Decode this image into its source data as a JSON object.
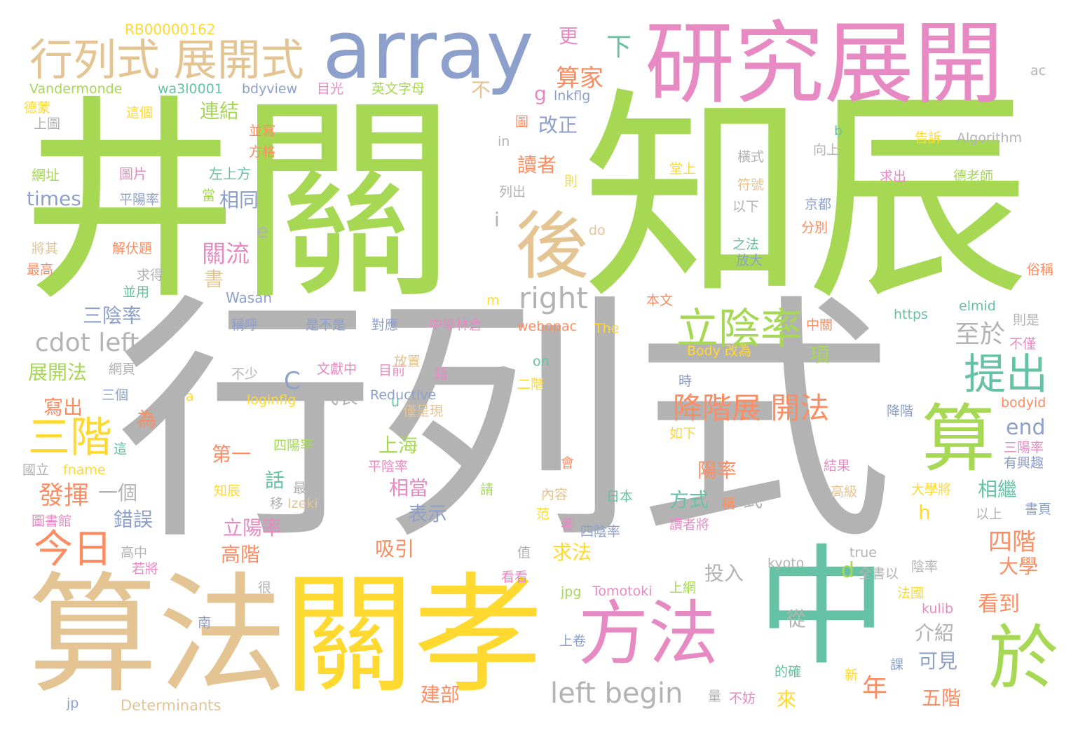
{
  "palette": {
    "green": "#a6d854",
    "gray": "#b3b3b3",
    "tan": "#e5c494",
    "yellow": "#ffd92f",
    "pink": "#e78ac3",
    "blue": "#8da0cb",
    "teal": "#66c2a5",
    "orange": "#fc8d62"
  },
  "words": [
    {
      "text": "行列式",
      "color": "gray",
      "vertical": false
    },
    {
      "text": "井關",
      "color": "green",
      "vertical": false
    },
    {
      "text": "知辰",
      "color": "green",
      "vertical": false
    },
    {
      "text": "算法",
      "color": "tan",
      "vertical": false
    },
    {
      "text": "關孝",
      "color": "yellow",
      "vertical": false
    },
    {
      "text": "研究展開",
      "color": "pink",
      "vertical": false
    },
    {
      "text": "中",
      "color": "teal",
      "vertical": false
    },
    {
      "text": "array",
      "color": "blue",
      "vertical": false
    },
    {
      "text": "後",
      "color": "tan",
      "vertical": false
    },
    {
      "text": "方法",
      "color": "pink",
      "vertical": false
    },
    {
      "text": "算",
      "color": "green",
      "vertical": false
    },
    {
      "text": "於",
      "color": "green",
      "vertical": false
    },
    {
      "text": "行列式 展開式",
      "color": "tan",
      "vertical": false
    },
    {
      "text": "立陰率",
      "color": "green",
      "vertical": false
    },
    {
      "text": "三階",
      "color": "yellow",
      "vertical": false
    },
    {
      "text": "提出",
      "color": "teal",
      "vertical": false
    },
    {
      "text": "今日",
      "color": "orange",
      "vertical": false
    },
    {
      "text": "left begin",
      "color": "gray",
      "vertical": false
    },
    {
      "text": "cdot left",
      "color": "gray",
      "vertical": false
    },
    {
      "text": "降階展 開法",
      "color": "orange",
      "vertical": false
    },
    {
      "text": "right",
      "color": "gray",
      "vertical": false
    },
    {
      "text": "RB00000162",
      "color": "yellow",
      "vertical": false
    },
    {
      "text": "Vandermonde",
      "color": "green",
      "vertical": false
    },
    {
      "text": "wa3l0001",
      "color": "teal",
      "vertical": false
    },
    {
      "text": "bdyview",
      "color": "blue",
      "vertical": false
    },
    {
      "text": "目光",
      "color": "pink",
      "vertical": false
    },
    {
      "text": "英文字母",
      "color": "green",
      "vertical": false
    },
    {
      "text": "德蒙",
      "color": "yellow",
      "vertical": false
    },
    {
      "text": "這個",
      "color": "yellow",
      "vertical": false
    },
    {
      "text": "上圖",
      "color": "gray",
      "vertical": false
    },
    {
      "text": "網址",
      "color": "green",
      "vertical": false
    },
    {
      "text": "圖片",
      "color": "pink",
      "vertical": false
    },
    {
      "text": "左上方",
      "color": "teal",
      "vertical": false
    },
    {
      "text": "times",
      "color": "blue",
      "vertical": false
    },
    {
      "text": "平陽率",
      "color": "blue",
      "vertical": false
    },
    {
      "text": "當",
      "color": "green",
      "vertical": false
    },
    {
      "text": "將其",
      "color": "tan",
      "vertical": false
    },
    {
      "text": "解伏題",
      "color": "orange",
      "vertical": false
    },
    {
      "text": "最高",
      "color": "orange",
      "vertical": false
    },
    {
      "text": "求得",
      "color": "gray",
      "vertical": false
    },
    {
      "text": "並用",
      "color": "teal",
      "vertical": false
    },
    {
      "text": "Wasan",
      "color": "blue",
      "vertical": false
    },
    {
      "text": "三陰率",
      "color": "blue",
      "vertical": false
    },
    {
      "text": "稱呼",
      "color": "blue",
      "vertical": false
    },
    {
      "text": "是不是",
      "color": "blue",
      "vertical": false
    },
    {
      "text": "對應",
      "color": "blue",
      "vertical": false
    },
    {
      "text": "中學林倉",
      "color": "pink",
      "vertical": false
    },
    {
      "text": "webopac",
      "color": "orange",
      "vertical": false
    },
    {
      "text": "The",
      "color": "yellow",
      "vertical": false
    },
    {
      "text": "中關",
      "color": "orange",
      "vertical": false
    },
    {
      "text": "https",
      "color": "teal",
      "vertical": false
    },
    {
      "text": "elmid",
      "color": "teal",
      "vertical": false
    },
    {
      "text": "則是",
      "color": "gray",
      "vertical": false
    },
    {
      "text": "不僅",
      "color": "pink",
      "vertical": false
    },
    {
      "text": "Body 改為",
      "color": "yellow",
      "vertical": false
    },
    {
      "text": "展開法",
      "color": "green",
      "vertical": false
    },
    {
      "text": "網頁",
      "color": "gray",
      "vertical": false
    },
    {
      "text": "不少",
      "color": "gray",
      "vertical": false
    },
    {
      "text": "文獻中",
      "color": "pink",
      "vertical": false
    },
    {
      "text": "目前",
      "color": "pink",
      "vertical": false
    },
    {
      "text": "錯",
      "color": "pink",
      "vertical": false
    },
    {
      "text": "二階",
      "color": "yellow",
      "vertical": false
    },
    {
      "text": "時",
      "color": "blue",
      "vertical": false
    },
    {
      "text": "寫出",
      "color": "orange",
      "vertical": false
    },
    {
      "text": "三個",
      "color": "blue",
      "vertical": false
    },
    {
      "text": "代表",
      "color": "gray",
      "vertical": false
    },
    {
      "text": "Reductive",
      "color": "blue",
      "vertical": false
    },
    {
      "text": "loginflg",
      "color": "yellow",
      "vertical": false
    },
    {
      "text": "僅呈現",
      "color": "tan",
      "vertical": false
    },
    {
      "text": "bodyid",
      "color": "orange",
      "vertical": false
    },
    {
      "text": "為",
      "color": "orange",
      "vertical": false
    },
    {
      "text": "上海",
      "color": "green",
      "vertical": false
    },
    {
      "text": "end",
      "color": "blue",
      "vertical": false
    },
    {
      "text": "第一",
      "color": "orange",
      "vertical": false
    },
    {
      "text": "四陽率",
      "color": "green",
      "vertical": false
    },
    {
      "text": "平陰率",
      "color": "pink",
      "vertical": false
    },
    {
      "text": "如下",
      "color": "yellow",
      "vertical": false
    },
    {
      "text": "降階",
      "color": "blue",
      "vertical": false
    },
    {
      "text": "三陽率",
      "color": "pink",
      "vertical": false
    },
    {
      "text": "有興趣",
      "color": "blue",
      "vertical": false
    },
    {
      "text": "國立",
      "color": "gray",
      "vertical": false
    },
    {
      "text": "fname",
      "color": "yellow",
      "vertical": false
    },
    {
      "text": "陽率",
      "color": "orange",
      "vertical": false
    },
    {
      "text": "發揮",
      "color": "orange",
      "vertical": false
    },
    {
      "text": "一個",
      "color": "gray",
      "vertical": false
    },
    {
      "text": "相當",
      "color": "pink",
      "vertical": false
    },
    {
      "text": "話",
      "color": "teal",
      "vertical": false
    },
    {
      "text": "知辰",
      "color": "yellow",
      "vertical": false
    },
    {
      "text": "最早",
      "color": "gray",
      "vertical": false
    },
    {
      "text": "移",
      "color": "gray",
      "vertical": false
    },
    {
      "text": "Izeki",
      "color": "tan",
      "vertical": false
    },
    {
      "text": "方式",
      "color": "teal",
      "vertical": false
    },
    {
      "text": "式",
      "color": "gray",
      "vertical": false
    },
    {
      "text": "結果",
      "color": "pink",
      "vertical": false
    },
    {
      "text": "大學將",
      "color": "yellow",
      "vertical": false
    },
    {
      "text": "相繼",
      "color": "teal",
      "vertical": false
    },
    {
      "text": "錯誤",
      "color": "blue",
      "vertical": false
    },
    {
      "text": "表示",
      "color": "blue",
      "vertical": false
    },
    {
      "text": "內容",
      "color": "tan",
      "vertical": false
    },
    {
      "text": "日本",
      "color": "teal",
      "vertical": false
    },
    {
      "text": "稱",
      "color": "orange",
      "vertical": false
    },
    {
      "text": "高級",
      "color": "tan",
      "vertical": false
    },
    {
      "text": "圖書館",
      "color": "pink",
      "vertical": false
    },
    {
      "text": "立陽率",
      "color": "pink",
      "vertical": false
    },
    {
      "text": "四階",
      "color": "orange",
      "vertical": false
    },
    {
      "text": "以上",
      "color": "gray",
      "vertical": false
    },
    {
      "text": "書頁",
      "color": "blue",
      "vertical": false
    },
    {
      "text": "高中",
      "color": "gray",
      "vertical": false
    },
    {
      "text": "若將",
      "color": "pink",
      "vertical": false
    },
    {
      "text": "高階",
      "color": "orange",
      "vertical": false
    },
    {
      "text": "吸引",
      "color": "orange",
      "vertical": false
    },
    {
      "text": "值",
      "color": "gray",
      "vertical": false
    },
    {
      "text": "求法",
      "color": "yellow",
      "vertical": false
    },
    {
      "text": "四陰率",
      "color": "blue",
      "vertical": false
    },
    {
      "text": "讀者將",
      "color": "pink",
      "vertical": false
    },
    {
      "text": "大學",
      "color": "orange",
      "vertical": false
    },
    {
      "text": "很",
      "color": "gray",
      "vertical": false
    },
    {
      "text": "看看",
      "color": "pink",
      "vertical": false
    },
    {
      "text": "投入",
      "color": "gray",
      "vertical": false
    },
    {
      "text": "kyoto",
      "color": "gray",
      "vertical": false
    },
    {
      "text": "全書以",
      "color": "gray",
      "vertical": false
    },
    {
      "text": "陰率",
      "color": "gray",
      "vertical": false
    },
    {
      "text": "jpg",
      "color": "green",
      "vertical": false
    },
    {
      "text": "Tomotoki",
      "color": "pink",
      "vertical": false
    },
    {
      "text": "上網",
      "color": "green",
      "vertical": false
    },
    {
      "text": "法國",
      "color": "yellow",
      "vertical": false
    },
    {
      "text": "kulib",
      "color": "pink",
      "vertical": false
    },
    {
      "text": "看到",
      "color": "orange",
      "vertical": false
    },
    {
      "text": "南",
      "color": "blue",
      "vertical": false
    },
    {
      "text": "上卷",
      "color": "blue",
      "vertical": false
    },
    {
      "text": "從",
      "color": "gray",
      "vertical": false
    },
    {
      "text": "介紹",
      "color": "gray",
      "vertical": false
    },
    {
      "text": "可見",
      "color": "blue",
      "vertical": false
    },
    {
      "text": "課",
      "color": "blue",
      "vertical": false
    },
    {
      "text": "的確",
      "color": "teal",
      "vertical": false
    },
    {
      "text": "新",
      "color": "yellow",
      "vertical": false
    },
    {
      "text": "年",
      "color": "orange",
      "vertical": false
    },
    {
      "text": "建部",
      "color": "orange",
      "vertical": false
    },
    {
      "text": "來",
      "color": "yellow",
      "vertical": false
    },
    {
      "text": "五階",
      "color": "orange",
      "vertical": false
    },
    {
      "text": "jp",
      "color": "blue",
      "vertical": false
    },
    {
      "text": "Determinants",
      "color": "tan",
      "vertical": false
    },
    {
      "text": "量",
      "color": "gray",
      "vertical": false
    },
    {
      "text": "不妨",
      "color": "pink",
      "vertical": false
    },
    {
      "text": "更",
      "color": "pink",
      "vertical": false
    },
    {
      "text": "下",
      "color": "teal",
      "vertical": false
    },
    {
      "text": "算家",
      "color": "orange",
      "vertical": false
    },
    {
      "text": "不",
      "color": "tan",
      "vertical": false
    },
    {
      "text": "g",
      "color": "pink",
      "vertical": false
    },
    {
      "text": "lnkflg",
      "color": "blue",
      "vertical": false
    },
    {
      "text": "連結",
      "color": "green",
      "vertical": false
    },
    {
      "text": "改正",
      "color": "blue",
      "vertical": false
    },
    {
      "text": "圖",
      "color": "orange",
      "vertical": false
    },
    {
      "text": "ac",
      "color": "gray",
      "vertical": false
    },
    {
      "text": "並寫",
      "color": "orange",
      "vertical": false
    },
    {
      "text": "方格",
      "color": "orange",
      "vertical": false
    },
    {
      "text": "in",
      "color": "gray",
      "vertical": false
    },
    {
      "text": "讀者",
      "color": "orange",
      "vertical": false
    },
    {
      "text": "則",
      "color": "yellow",
      "vertical": false
    },
    {
      "text": "列出",
      "color": "gray",
      "vertical": false
    },
    {
      "text": "b",
      "color": "teal",
      "vertical": false
    },
    {
      "text": "向上",
      "color": "gray",
      "vertical": false
    },
    {
      "text": "告訴",
      "color": "yellow",
      "vertical": false
    },
    {
      "text": "Algorithm",
      "color": "gray",
      "vertical": false
    },
    {
      "text": "橫式",
      "color": "gray",
      "vertical": false
    },
    {
      "text": "堂上",
      "color": "yellow",
      "vertical": false
    },
    {
      "text": "求出",
      "color": "pink",
      "vertical": false
    },
    {
      "text": "德老師",
      "color": "green",
      "vertical": false
    },
    {
      "text": "符號",
      "color": "tan",
      "vertical": false
    },
    {
      "text": "以下",
      "color": "gray",
      "vertical": false
    },
    {
      "text": "京都",
      "color": "blue",
      "vertical": false
    },
    {
      "text": "相同",
      "color": "blue",
      "vertical": false
    },
    {
      "text": "i",
      "color": "gray",
      "vertical": false
    },
    {
      "text": "分別",
      "color": "orange",
      "vertical": false
    },
    {
      "text": "e",
      "color": "gray",
      "vertical": false
    },
    {
      "text": "do",
      "color": "tan",
      "vertical": false
    },
    {
      "text": "之法",
      "color": "teal",
      "vertical": false
    },
    {
      "text": "放大",
      "color": "blue",
      "vertical": false
    },
    {
      "text": "關流",
      "color": "pink",
      "vertical": false
    },
    {
      "text": "f",
      "color": "green",
      "vertical": false
    },
    {
      "text": "書",
      "color": "tan",
      "vertical": false
    },
    {
      "text": "俗稱",
      "color": "orange",
      "vertical": false
    },
    {
      "text": "m",
      "color": "yellow",
      "vertical": false
    },
    {
      "text": "本文",
      "color": "orange",
      "vertical": false
    },
    {
      "text": "至於",
      "color": "gray",
      "vertical": false
    },
    {
      "text": "項",
      "color": "green",
      "vertical": false
    },
    {
      "text": "C",
      "color": "blue",
      "vertical": false
    },
    {
      "text": "放置",
      "color": "tan",
      "vertical": false
    },
    {
      "text": "on",
      "color": "teal",
      "vertical": false
    },
    {
      "text": "a",
      "color": "yellow",
      "vertical": false
    },
    {
      "text": "u",
      "color": "teal",
      "vertical": false
    },
    {
      "text": "這",
      "color": "teal",
      "vertical": false
    },
    {
      "text": "會",
      "color": "orange",
      "vertical": false
    },
    {
      "text": "請",
      "color": "green",
      "vertical": false
    },
    {
      "text": "h",
      "color": "yellow",
      "vertical": false
    },
    {
      "text": "范",
      "color": "yellow",
      "vertical": false
    },
    {
      "text": "著",
      "color": "pink",
      "vertical": false
    },
    {
      "text": "d",
      "color": "green",
      "vertical": false
    },
    {
      "text": "true",
      "color": "gray",
      "vertical": false
    }
  ]
}
